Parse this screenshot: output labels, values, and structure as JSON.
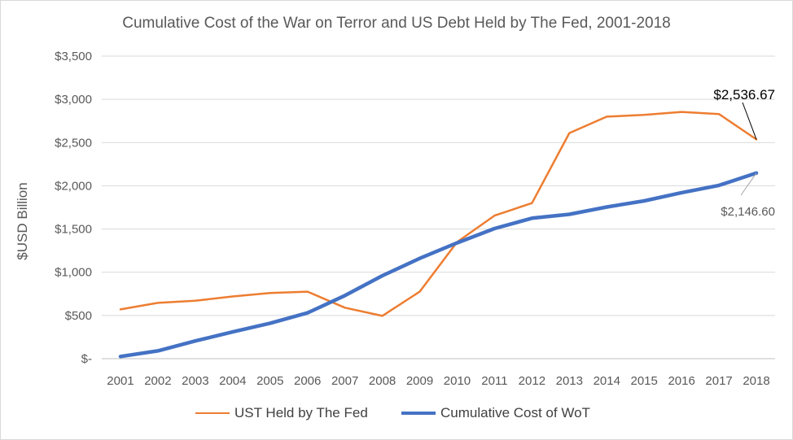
{
  "chart_data": {
    "type": "line",
    "title": "Cumulative Cost of the War on Terror and US Debt Held by The Fed, 2001-2018",
    "ylabel": "$USD Billion",
    "xlabel": "",
    "x": [
      "2001",
      "2002",
      "2003",
      "2004",
      "2005",
      "2006",
      "2007",
      "2008",
      "2009",
      "2010",
      "2011",
      "2012",
      "2013",
      "2014",
      "2015",
      "2016",
      "2017",
      "2018"
    ],
    "ylim": [
      0,
      3500
    ],
    "yticks": [
      0,
      500,
      1000,
      1500,
      2000,
      2500,
      3000,
      3500
    ],
    "ytick_labels": [
      "$-",
      "$500",
      "$1,000",
      "$1,500",
      "$2,000",
      "$2,500",
      "$3,000",
      "$3,500"
    ],
    "grid": true,
    "legend_position": "bottom",
    "series": [
      {
        "name": "UST Held by The Fed",
        "color": "#ed7d31",
        "values": [
          570,
          645,
          670,
          720,
          760,
          775,
          590,
          495,
          775,
          1350,
          1655,
          1800,
          2610,
          2800,
          2820,
          2855,
          2830,
          2536.67
        ]
      },
      {
        "name": "Cumulative Cost of WoT",
        "color": "#4472c4",
        "values": [
          25,
          90,
          205,
          310,
          410,
          530,
          730,
          960,
          1160,
          1340,
          1505,
          1625,
          1670,
          1755,
          1825,
          1920,
          2005,
          2146.6
        ]
      }
    ],
    "annotations": [
      {
        "series": 0,
        "index": 17,
        "text": "$2,536.67"
      },
      {
        "series": 1,
        "index": 17,
        "text": "$2,146.60"
      }
    ]
  }
}
